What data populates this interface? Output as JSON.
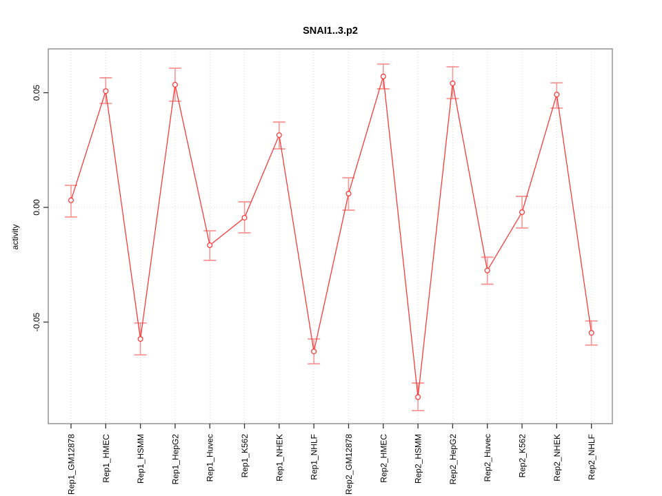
{
  "figure": {
    "title": "SNAI1..3.p2",
    "ylabel": "activity"
  },
  "chart_data": {
    "type": "line",
    "title": "SNAI1..3.p2",
    "xlabel": "",
    "ylabel": "activity",
    "legend": "none",
    "grid": "dotted vertical line at each category; dotted horizontal line at y=0",
    "categories": [
      "Rep1_GM12878",
      "Rep1_HMEC",
      "Rep1_HSMM",
      "Rep1_HepG2",
      "Rep1_Huvec",
      "Rep1_K562",
      "Rep1_NHEK",
      "Rep1_NHLF",
      "Rep2_GM12878",
      "Rep2_HMEC",
      "Rep2_HSMM",
      "Rep2_HepG2",
      "Rep2_Huvec",
      "Rep2_K562",
      "Rep2_NHEK",
      "Rep2_NHLF"
    ],
    "series": [
      {
        "name": "activity",
        "values": [
          0.0031,
          0.0507,
          -0.0574,
          0.0535,
          -0.0165,
          -0.0045,
          0.0315,
          -0.0628,
          0.006,
          0.0571,
          -0.0827,
          0.0541,
          -0.0275,
          -0.0021,
          0.0492,
          -0.0547
        ],
        "error_upper": [
          0.0096,
          0.0565,
          -0.0504,
          0.0607,
          -0.0102,
          0.0024,
          0.0372,
          -0.0574,
          0.0129,
          0.0625,
          -0.0766,
          0.0613,
          -0.0217,
          0.0048,
          0.0543,
          -0.0495
        ],
        "error_lower": [
          -0.0042,
          0.0453,
          -0.0643,
          0.0463,
          -0.0231,
          -0.0111,
          0.0255,
          -0.0682,
          -0.0012,
          0.0517,
          -0.0886,
          0.0474,
          -0.0335,
          -0.009,
          0.0433,
          -0.06
        ]
      }
    ],
    "yticks": [
      {
        "value": -0.05,
        "label": "-0.05"
      },
      {
        "value": 0.0,
        "label": "0.00"
      },
      {
        "value": 0.05,
        "label": "0.05"
      }
    ],
    "ylim": [
      -0.0943,
      0.0691
    ],
    "colors": {
      "line": "#f93a3a",
      "point_fill": "#ffffff",
      "error_bar": "#fb9595",
      "grid": "#d6d6d6",
      "box": "#8a8a8a",
      "tick": "#2f2f2f",
      "background": "#ffffff"
    }
  }
}
